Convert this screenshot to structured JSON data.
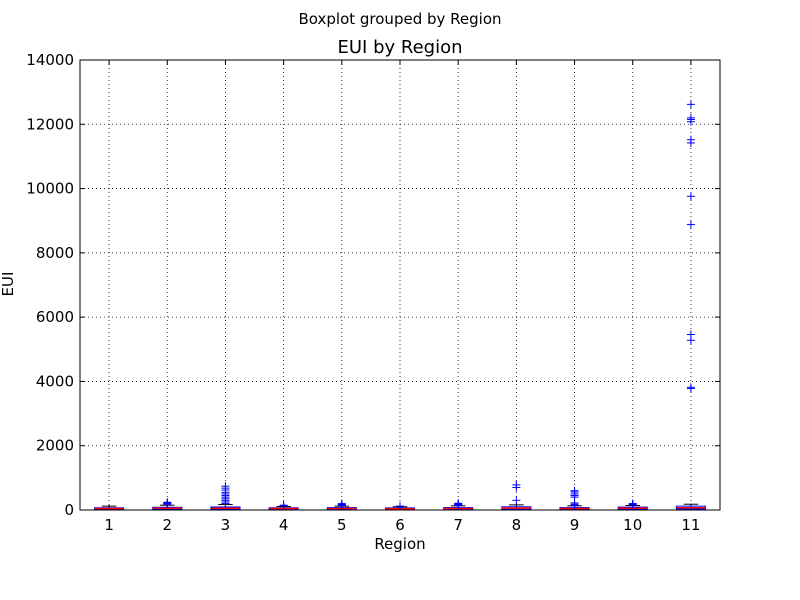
{
  "chart_data": {
    "type": "box",
    "suptitle": "Boxplot grouped by Region",
    "title": "EUI by Region",
    "xlabel": "Region",
    "ylabel": "EUI",
    "ylim": [
      0,
      14000
    ],
    "yticks": [
      0,
      2000,
      4000,
      6000,
      8000,
      10000,
      12000,
      14000
    ],
    "grid": true,
    "box_color": "#0000ff",
    "median_color": "#ff0000",
    "flier_color": "#0000ff",
    "groups": [
      {
        "category": "1",
        "q1": 20,
        "median": 45,
        "q3": 70,
        "whisker_low": 0,
        "whisker_high": 120,
        "fliers": []
      },
      {
        "category": "2",
        "q1": 25,
        "median": 55,
        "q3": 85,
        "whisker_low": 0,
        "whisker_high": 150,
        "fliers": [
          180,
          200,
          220,
          240
        ]
      },
      {
        "category": "3",
        "q1": 25,
        "median": 55,
        "q3": 95,
        "whisker_low": 0,
        "whisker_high": 170,
        "fliers": [
          200,
          250,
          300,
          350,
          400,
          450,
          500,
          550,
          620,
          680,
          740
        ]
      },
      {
        "category": "4",
        "q1": 20,
        "median": 45,
        "q3": 70,
        "whisker_low": 0,
        "whisker_high": 110,
        "fliers": [
          130,
          150
        ]
      },
      {
        "category": "5",
        "q1": 20,
        "median": 45,
        "q3": 75,
        "whisker_low": 0,
        "whisker_high": 120,
        "fliers": [
          140,
          160,
          180,
          200
        ]
      },
      {
        "category": "6",
        "q1": 20,
        "median": 40,
        "q3": 65,
        "whisker_low": 0,
        "whisker_high": 100,
        "fliers": [
          120
        ]
      },
      {
        "category": "7",
        "q1": 20,
        "median": 45,
        "q3": 75,
        "whisker_low": 0,
        "whisker_high": 130,
        "fliers": [
          150,
          170,
          190,
          210
        ]
      },
      {
        "category": "8",
        "q1": 25,
        "median": 60,
        "q3": 100,
        "whisker_low": 0,
        "whisker_high": 160,
        "fliers": [
          300,
          700,
          780
        ]
      },
      {
        "category": "9",
        "q1": 20,
        "median": 45,
        "q3": 75,
        "whisker_low": 0,
        "whisker_high": 130,
        "fliers": [
          150,
          180,
          220,
          400,
          450,
          500,
          560,
          600
        ]
      },
      {
        "category": "10",
        "q1": 25,
        "median": 55,
        "q3": 90,
        "whisker_low": 0,
        "whisker_high": 140,
        "fliers": [
          160,
          180,
          200
        ]
      },
      {
        "category": "11",
        "q1": 30,
        "median": 70,
        "q3": 120,
        "whisker_low": 0,
        "whisker_high": 180,
        "fliers": [
          3780,
          3820,
          5280,
          5460,
          8880,
          9760,
          11420,
          11520,
          12080,
          12150,
          12200,
          12620
        ]
      }
    ]
  }
}
